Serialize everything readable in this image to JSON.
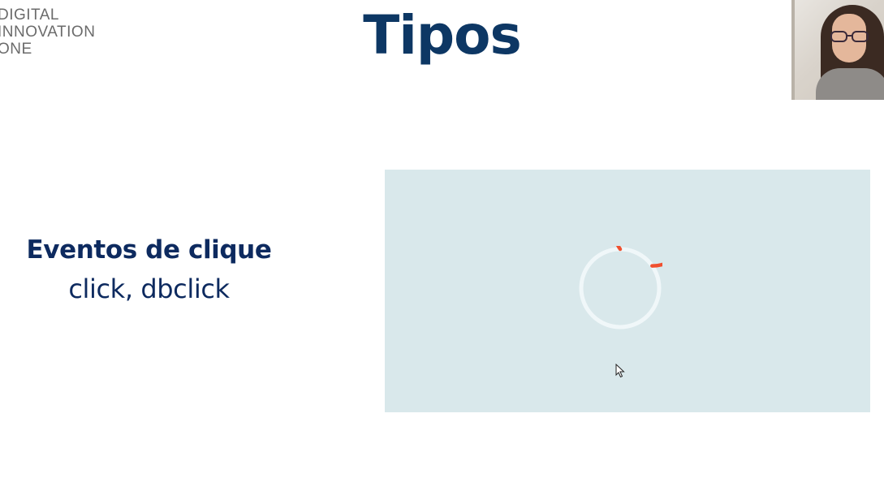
{
  "logo": {
    "line1": "DIGITAL",
    "line2": "INNOVATION",
    "line3": "ONE"
  },
  "slide": {
    "title": "Tipos",
    "heading": "Eventos de clique",
    "events": "click, dbclick"
  },
  "colors": {
    "title": "#0d3764",
    "text": "#0d2a5f",
    "panel": "#d9e8eb",
    "spinner": "#f0502f",
    "background": "#ffffff"
  },
  "icons": {
    "spinner": "loading-spinner-icon",
    "cursor": "mouse-pointer-icon"
  }
}
